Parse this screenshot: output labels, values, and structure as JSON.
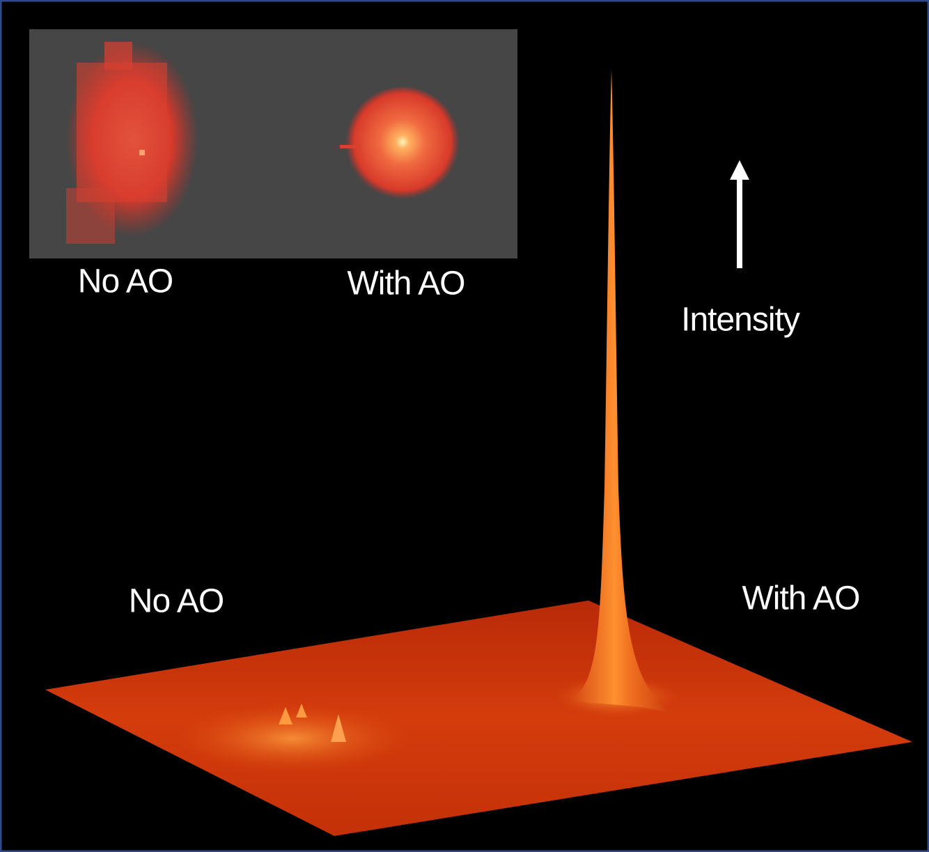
{
  "inset": {
    "labels": [
      "No AO",
      "With AO"
    ]
  },
  "axis_label": "Intensity",
  "surface": {
    "labels": [
      "No AO",
      "With AO"
    ]
  }
}
